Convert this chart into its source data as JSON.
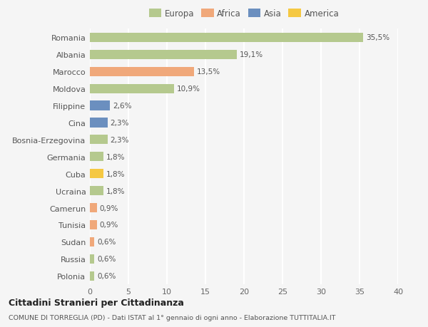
{
  "categories": [
    "Romania",
    "Albania",
    "Marocco",
    "Moldova",
    "Filippine",
    "Cina",
    "Bosnia-Erzegovina",
    "Germania",
    "Cuba",
    "Ucraina",
    "Camerun",
    "Tunisia",
    "Sudan",
    "Russia",
    "Polonia"
  ],
  "values": [
    35.5,
    19.1,
    13.5,
    10.9,
    2.6,
    2.3,
    2.3,
    1.8,
    1.8,
    1.8,
    0.9,
    0.9,
    0.6,
    0.6,
    0.6
  ],
  "labels": [
    "35,5%",
    "19,1%",
    "13,5%",
    "10,9%",
    "2,6%",
    "2,3%",
    "2,3%",
    "1,8%",
    "1,8%",
    "1,8%",
    "0,9%",
    "0,9%",
    "0,6%",
    "0,6%",
    "0,6%"
  ],
  "colors": [
    "#b5c98e",
    "#b5c98e",
    "#f0a87a",
    "#b5c98e",
    "#6b8fbf",
    "#6b8fbf",
    "#b5c98e",
    "#b5c98e",
    "#f5c842",
    "#b5c98e",
    "#f0a87a",
    "#f0a87a",
    "#f0a87a",
    "#b5c98e",
    "#b5c98e"
  ],
  "legend": {
    "Europa": "#b5c98e",
    "Africa": "#f0a87a",
    "Asia": "#6b8fbf",
    "America": "#f5c842"
  },
  "xlim": [
    0,
    40
  ],
  "xticks": [
    0,
    5,
    10,
    15,
    20,
    25,
    30,
    35,
    40
  ],
  "title1": "Cittadini Stranieri per Cittadinanza",
  "title2": "COMUNE DI TORREGLIA (PD) - Dati ISTAT al 1° gennaio di ogni anno - Elaborazione TUTTITALIA.IT",
  "bg_color": "#f5f5f5",
  "grid_color": "#ffffff",
  "bar_height": 0.55
}
